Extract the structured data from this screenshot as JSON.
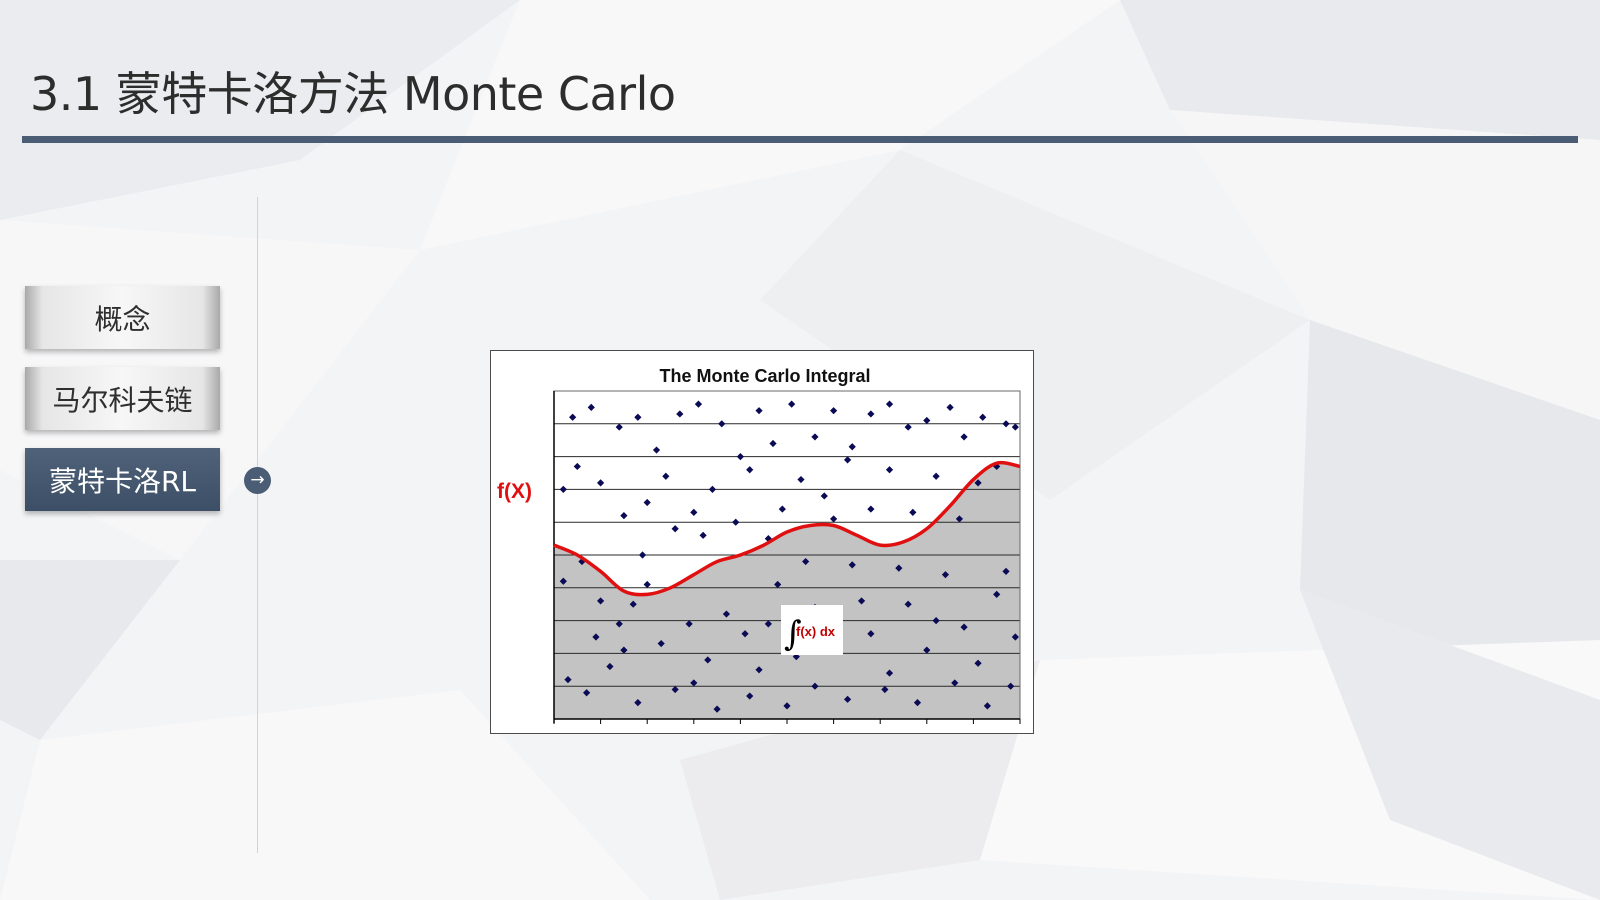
{
  "slide": {
    "title": "3.1 蒙特卡洛方法 Monte Carlo"
  },
  "nav": {
    "items": [
      {
        "label": "概念",
        "active": false
      },
      {
        "label": "马尔科夫链",
        "active": false
      },
      {
        "label": "蒙特卡洛RL",
        "active": true
      }
    ],
    "arrow_icon": "arrow-right-circle-icon"
  },
  "figure": {
    "title": "The Monte Carlo Integral",
    "ylabel": "f(X)",
    "integral_label": "f(x) dx",
    "integral_symbol": "∫"
  },
  "colors": {
    "accent": "#4a5d75",
    "curve": "#e01010",
    "points": "#0a0a55",
    "area": "#c3c3c3"
  },
  "chart_data": {
    "type": "scatter",
    "title": "The Monte Carlo Integral",
    "ylabel": "f(X)",
    "xlabel": "",
    "xlim": [
      0,
      10
    ],
    "ylim": [
      0,
      10
    ],
    "curve": {
      "x": [
        0,
        0.5,
        1,
        1.5,
        2,
        2.5,
        3,
        3.5,
        4,
        4.5,
        5,
        5.5,
        6,
        6.5,
        7,
        7.5,
        8,
        8.5,
        9,
        9.5,
        10
      ],
      "y": [
        5.3,
        5.0,
        4.5,
        3.9,
        3.8,
        4.0,
        4.4,
        4.8,
        5.0,
        5.3,
        5.7,
        5.9,
        5.9,
        5.6,
        5.3,
        5.4,
        5.8,
        6.5,
        7.3,
        7.8,
        7.7
      ]
    },
    "points": [
      [
        0.4,
        9.2
      ],
      [
        0.8,
        9.5
      ],
      [
        1.4,
        8.9
      ],
      [
        1.8,
        9.2
      ],
      [
        2.2,
        8.2
      ],
      [
        2.7,
        9.3
      ],
      [
        3.1,
        9.6
      ],
      [
        3.6,
        9.0
      ],
      [
        4.0,
        8.0
      ],
      [
        4.4,
        9.4
      ],
      [
        4.7,
        8.4
      ],
      [
        5.1,
        9.6
      ],
      [
        5.6,
        8.6
      ],
      [
        6.0,
        9.4
      ],
      [
        6.4,
        8.3
      ],
      [
        6.8,
        9.3
      ],
      [
        7.2,
        9.6
      ],
      [
        7.6,
        8.9
      ],
      [
        8.0,
        9.1
      ],
      [
        8.5,
        9.5
      ],
      [
        8.8,
        8.6
      ],
      [
        9.2,
        9.2
      ],
      [
        9.7,
        9.0
      ],
      [
        9.9,
        8.9
      ],
      [
        0.2,
        7.0
      ],
      [
        0.5,
        7.7
      ],
      [
        1.0,
        7.2
      ],
      [
        1.5,
        6.2
      ],
      [
        2.0,
        6.6
      ],
      [
        2.4,
        7.4
      ],
      [
        3.0,
        6.3
      ],
      [
        3.4,
        7.0
      ],
      [
        3.9,
        6.0
      ],
      [
        4.2,
        7.6
      ],
      [
        4.9,
        6.4
      ],
      [
        5.3,
        7.3
      ],
      [
        5.8,
        6.8
      ],
      [
        6.3,
        7.9
      ],
      [
        6.8,
        6.4
      ],
      [
        7.2,
        7.6
      ],
      [
        7.7,
        6.3
      ],
      [
        8.2,
        7.4
      ],
      [
        8.7,
        6.1
      ],
      [
        9.1,
        7.2
      ],
      [
        9.5,
        7.7
      ],
      [
        2.6,
        5.8
      ],
      [
        3.2,
        5.6
      ],
      [
        4.6,
        5.5
      ],
      [
        6.0,
        6.1
      ],
      [
        1.9,
        5.0
      ],
      [
        0.2,
        4.2
      ],
      [
        0.6,
        4.8
      ],
      [
        1.0,
        3.6
      ],
      [
        1.4,
        2.9
      ],
      [
        1.7,
        3.5
      ],
      [
        2.3,
        2.3
      ],
      [
        2.9,
        2.9
      ],
      [
        3.3,
        1.8
      ],
      [
        3.7,
        3.2
      ],
      [
        4.1,
        2.6
      ],
      [
        4.4,
        1.5
      ],
      [
        4.8,
        4.1
      ],
      [
        5.2,
        1.9
      ],
      [
        5.6,
        3.4
      ],
      [
        6.0,
        2.2
      ],
      [
        6.4,
        4.7
      ],
      [
        6.8,
        2.6
      ],
      [
        7.2,
        1.4
      ],
      [
        7.6,
        3.5
      ],
      [
        8.0,
        2.1
      ],
      [
        8.4,
        4.4
      ],
      [
        8.8,
        2.8
      ],
      [
        9.1,
        1.7
      ],
      [
        9.5,
        3.8
      ],
      [
        9.9,
        2.5
      ],
      [
        0.3,
        1.2
      ],
      [
        0.7,
        0.8
      ],
      [
        1.2,
        1.6
      ],
      [
        1.8,
        0.5
      ],
      [
        2.6,
        0.9
      ],
      [
        3.5,
        0.3
      ],
      [
        4.2,
        0.7
      ],
      [
        5.0,
        0.4
      ],
      [
        5.6,
        1.0
      ],
      [
        6.3,
        0.6
      ],
      [
        7.1,
        0.9
      ],
      [
        7.8,
        0.5
      ],
      [
        8.6,
        1.1
      ],
      [
        9.3,
        0.4
      ],
      [
        9.8,
        1.0
      ],
      [
        1.5,
        2.1
      ],
      [
        3.0,
        1.1
      ],
      [
        4.6,
        2.9
      ],
      [
        6.6,
        3.6
      ],
      [
        8.2,
        3.0
      ],
      [
        9.7,
        4.5
      ],
      [
        5.4,
        4.8
      ],
      [
        7.4,
        4.6
      ],
      [
        2.0,
        4.1
      ],
      [
        0.9,
        2.5
      ]
    ],
    "grid": true,
    "hgrid_count": 10,
    "shaded_area_under_curve": true
  }
}
